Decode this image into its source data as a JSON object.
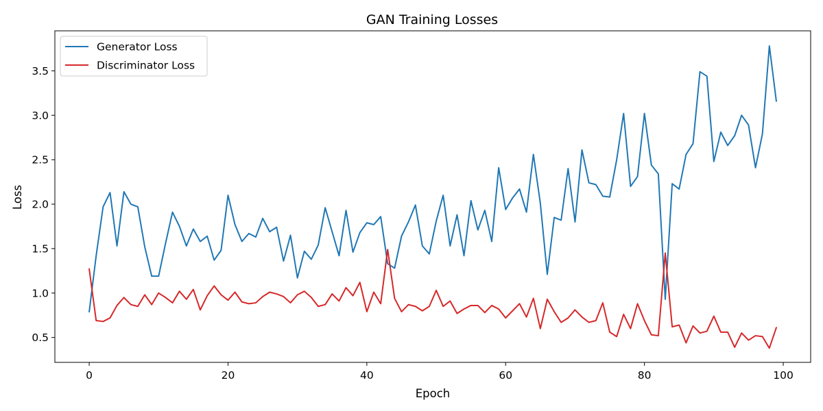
{
  "chart_data": {
    "type": "line",
    "title": "GAN Training Losses",
    "xlabel": "Epoch",
    "ylabel": "Loss",
    "xlim": [
      -4.95,
      103.95
    ],
    "ylim": [
      0.22,
      3.95
    ],
    "xticks": [
      0,
      20,
      40,
      60,
      80,
      100
    ],
    "xtick_labels": [
      "0",
      "20",
      "40",
      "60",
      "80",
      "100"
    ],
    "yticks": [
      0.5,
      1.0,
      1.5,
      2.0,
      2.5,
      3.0,
      3.5
    ],
    "ytick_labels": [
      "0.5",
      "1.0",
      "1.5",
      "2.0",
      "2.5",
      "3.0",
      "3.5"
    ],
    "grid": false,
    "legend": "top-left",
    "series": [
      {
        "name": "Generator Loss",
        "color": "#1f77b4",
        "values": [
          0.79,
          1.42,
          1.97,
          2.13,
          1.53,
          2.14,
          2.0,
          1.97,
          1.52,
          1.19,
          1.19,
          1.56,
          1.91,
          1.75,
          1.53,
          1.72,
          1.58,
          1.64,
          1.37,
          1.48,
          2.1,
          1.77,
          1.58,
          1.67,
          1.63,
          1.84,
          1.69,
          1.74,
          1.36,
          1.65,
          1.17,
          1.47,
          1.38,
          1.54,
          1.96,
          1.69,
          1.42,
          1.93,
          1.46,
          1.68,
          1.79,
          1.77,
          1.86,
          1.33,
          1.28,
          1.64,
          1.8,
          1.99,
          1.53,
          1.44,
          1.81,
          2.1,
          1.53,
          1.88,
          1.42,
          2.04,
          1.71,
          1.93,
          1.58,
          2.41,
          1.94,
          2.07,
          2.17,
          1.91,
          2.56,
          2.01,
          1.21,
          1.85,
          1.82,
          2.4,
          1.8,
          2.61,
          2.24,
          2.22,
          2.09,
          2.08,
          2.5,
          3.02,
          2.2,
          2.31,
          3.02,
          2.44,
          2.34,
          0.93,
          2.23,
          2.17,
          2.56,
          2.68,
          3.49,
          3.44,
          2.48,
          2.81,
          2.66,
          2.77,
          3.0,
          2.89,
          2.41,
          2.79,
          3.78,
          3.16
        ]
      },
      {
        "name": "Discriminator Loss",
        "color": "#d62728",
        "values": [
          1.27,
          0.69,
          0.68,
          0.72,
          0.86,
          0.95,
          0.87,
          0.85,
          0.98,
          0.87,
          1.0,
          0.95,
          0.89,
          1.02,
          0.93,
          1.04,
          0.81,
          0.97,
          1.08,
          0.98,
          0.92,
          1.01,
          0.9,
          0.88,
          0.89,
          0.96,
          1.01,
          0.99,
          0.96,
          0.89,
          0.98,
          1.02,
          0.95,
          0.85,
          0.87,
          0.99,
          0.91,
          1.06,
          0.97,
          1.12,
          0.79,
          1.01,
          0.88,
          1.49,
          0.94,
          0.79,
          0.87,
          0.85,
          0.8,
          0.85,
          1.03,
          0.85,
          0.91,
          0.77,
          0.82,
          0.86,
          0.86,
          0.78,
          0.86,
          0.82,
          0.72,
          0.8,
          0.88,
          0.73,
          0.94,
          0.6,
          0.93,
          0.79,
          0.67,
          0.72,
          0.81,
          0.73,
          0.67,
          0.69,
          0.89,
          0.56,
          0.51,
          0.76,
          0.6,
          0.88,
          0.69,
          0.53,
          0.52,
          1.45,
          0.62,
          0.64,
          0.44,
          0.63,
          0.55,
          0.57,
          0.74,
          0.56,
          0.56,
          0.39,
          0.55,
          0.47,
          0.52,
          0.51,
          0.38,
          0.61
        ]
      }
    ]
  }
}
